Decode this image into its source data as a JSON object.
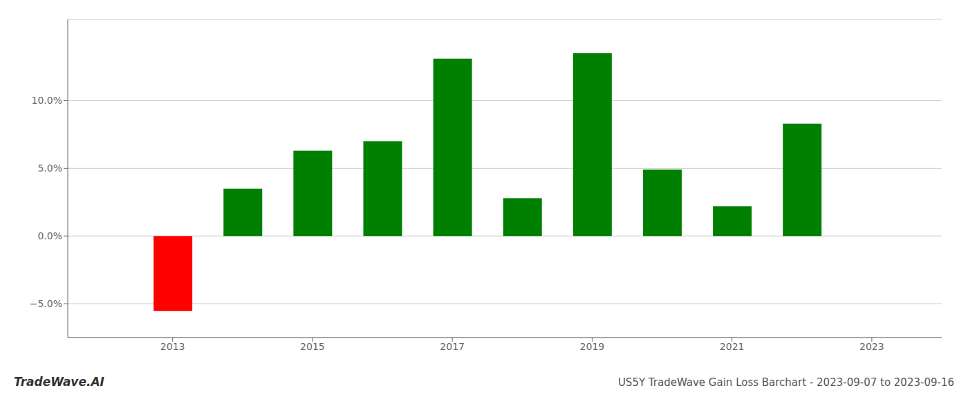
{
  "chart_data": {
    "type": "bar",
    "title": "US5Y TradeWave Gain Loss Barchart - 2023-09-07 to 2023-09-16",
    "annotations": [
      "TradeWave.AI"
    ],
    "x": [
      2013,
      2014,
      2015,
      2016,
      2017,
      2018,
      2019,
      2020,
      2021,
      2022
    ],
    "values": [
      -5.55,
      3.5,
      6.3,
      7.0,
      13.1,
      2.8,
      13.5,
      4.9,
      2.2,
      8.3
    ],
    "colors": [
      "#ff0000",
      "#008000",
      "#008000",
      "#008000",
      "#008000",
      "#008000",
      "#008000",
      "#008000",
      "#008000",
      "#008000"
    ],
    "xlim": [
      2011.5,
      2024.0
    ],
    "xticks": [
      2013,
      2015,
      2017,
      2019,
      2021,
      2023
    ],
    "ylim": [
      -7.5,
      16.0
    ],
    "yticks": [
      {
        "value": -5.0,
        "label": "−5.0%"
      },
      {
        "value": 0.0,
        "label": "0.0%"
      },
      {
        "value": 5.0,
        "label": "5.0%"
      },
      {
        "value": 10.0,
        "label": "10.0%"
      }
    ],
    "grid": true
  }
}
